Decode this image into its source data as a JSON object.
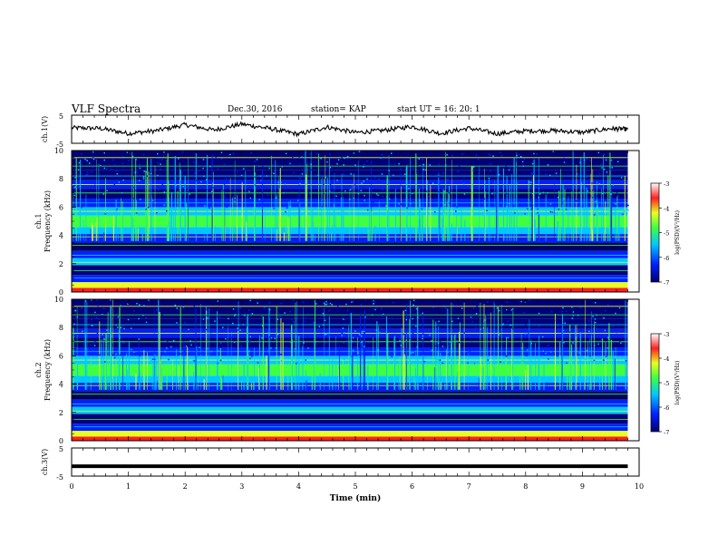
{
  "header": {
    "title": "VLF Spectra",
    "date": "Dec.30, 2016",
    "station": "station= KAP",
    "start_time": "start UT =  16: 20: 1"
  },
  "chart_data": [
    {
      "type": "line",
      "panel": "ch1-waveform",
      "ylabel": "ch.1(V)",
      "ylim": [
        -5,
        5
      ],
      "yticks": [
        "5",
        "-5"
      ],
      "xlim": [
        0,
        10
      ],
      "color": "#000000",
      "description_values": {
        "x_minutes": [
          0,
          0.5,
          1,
          1.5,
          2,
          2.5,
          3,
          3.5,
          4,
          4.5,
          5,
          5.5,
          6,
          6.5,
          7,
          7.5,
          8,
          8.5,
          9,
          9.5,
          9.8
        ],
        "y_volts": [
          0.5,
          0.3,
          -1.5,
          -0.5,
          1.6,
          -0.3,
          1.8,
          0.2,
          -1.8,
          0.8,
          -1.2,
          -0.4,
          1.0,
          -1.5,
          0.4,
          -1.6,
          -0.6,
          -0.5,
          -1.1,
          0.2,
          0.0
        ]
      }
    },
    {
      "type": "heatmap",
      "panel": "ch1-spectrogram",
      "ylabel": "ch.1 Frequency (kHz)",
      "ylim": [
        0,
        10
      ],
      "yticks": [
        "0",
        "2",
        "4",
        "6",
        "8",
        "10"
      ],
      "xlim": [
        0,
        10
      ],
      "colorbar": {
        "label": "log(PSD)(V²/Hz)",
        "range": [
          -7,
          -3
        ],
        "ticks": [
          "-3",
          "-4",
          "-5",
          "-6",
          "-7"
        ]
      }
    },
    {
      "type": "heatmap",
      "panel": "ch2-spectrogram",
      "ylabel": "ch.2 Frequency (kHz)",
      "ylim": [
        0,
        10
      ],
      "yticks": [
        "0",
        "2",
        "4",
        "6",
        "8",
        "10"
      ],
      "xlim": [
        0,
        10
      ],
      "colorbar": {
        "label": "log(PSD)(V²/Hz)",
        "range": [
          -7,
          -3
        ],
        "ticks": [
          "-3",
          "-4",
          "-5",
          "-6",
          "-7"
        ]
      }
    },
    {
      "type": "line",
      "panel": "ch3-waveform",
      "ylabel": "ch.3(V)",
      "ylim": [
        -5,
        5
      ],
      "yticks": [
        "5",
        "-5"
      ],
      "xlim": [
        0,
        10
      ],
      "color": "#000000",
      "description_values": {
        "x_minutes": [
          0,
          9.8
        ],
        "y_volts": [
          -1.5,
          -1.5
        ]
      }
    }
  ],
  "x_axis": {
    "label": "Time (min)",
    "ticks": [
      "0",
      "1",
      "2",
      "3",
      "4",
      "5",
      "6",
      "7",
      "8",
      "9",
      "10"
    ]
  },
  "labels": {
    "ch1_panel": "ch.1",
    "ch2_panel": "ch.2",
    "freq_label": "Frequency (kHz)",
    "cbar_label": "log(PSD)(V²/Hz)"
  },
  "colors": {
    "dark_blue": "#00007a",
    "blue": "#0020ff",
    "cyan": "#00c8ff",
    "green": "#40ff40",
    "yellow": "#e8ff20",
    "red": "#ff2020"
  }
}
